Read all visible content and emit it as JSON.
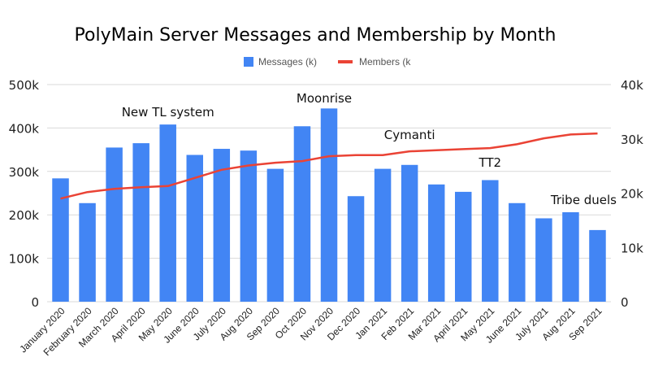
{
  "chart_data": {
    "type": "bar",
    "title": "PolyMain Server Messages and Membership by Month",
    "xlabel": "",
    "ylabel": "",
    "categories": [
      "January 2020",
      "February 2020",
      "March 2020",
      "April 2020",
      "May 2020",
      "June 2020",
      "July 2020",
      "Aug 2020",
      "Sep 2020",
      "Oct 2020",
      "Nov 2020",
      "Dec 2020",
      "Jan 2021",
      "Feb 2021",
      "Mar 2021",
      "April 2021",
      "May 2021",
      "June 2021",
      "July 2021",
      "Aug 2021",
      "Sep 2021"
    ],
    "series": [
      {
        "name": "Messages (k)",
        "type": "bar",
        "axis": "left",
        "color": "#4285f4",
        "values": [
          284,
          227,
          355,
          365,
          408,
          338,
          352,
          348,
          306,
          404,
          445,
          243,
          306,
          315,
          270,
          253,
          280,
          227,
          192,
          206,
          165
        ]
      },
      {
        "name": "Members (k",
        "type": "line",
        "axis": "right",
        "color": "#ea4335",
        "values": [
          19000,
          20200,
          20800,
          21100,
          21300,
          22800,
          24300,
          25100,
          25600,
          25900,
          26800,
          27000,
          27000,
          27700,
          27900,
          28100,
          28300,
          29000,
          30100,
          30800,
          31000
        ]
      }
    ],
    "y_left": {
      "ylim": [
        0,
        500
      ],
      "ticks": [
        0,
        100,
        200,
        300,
        400,
        500
      ],
      "tick_labels": [
        "0",
        "100k",
        "200k",
        "300k",
        "400k",
        "500k"
      ]
    },
    "y_right": {
      "ylim": [
        0,
        40000
      ],
      "ticks": [
        0,
        10000,
        20000,
        30000,
        40000
      ],
      "tick_labels": [
        "0",
        "10k",
        "20k",
        "30k",
        "40k"
      ]
    },
    "annotations": [
      {
        "text": "New TL system",
        "category": "May 2020"
      },
      {
        "text": "Moonrise",
        "category": "Nov 2020"
      },
      {
        "text": "Cymanti",
        "category": "Feb 2021"
      },
      {
        "text": "TT2",
        "category": "May 2021"
      },
      {
        "text": "Tribe duels",
        "category": "Aug 2021"
      }
    ],
    "legend_position": "top-center",
    "grid": true
  }
}
